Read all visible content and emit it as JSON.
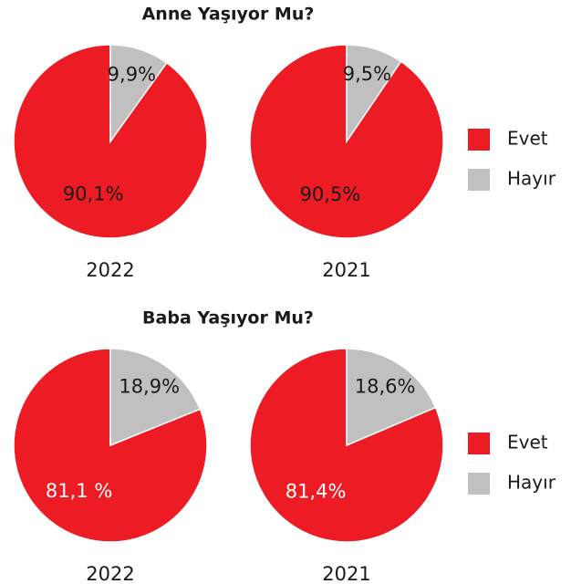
{
  "chart_data": [
    {
      "type": "pie",
      "title": "Anne Yaşıyor Mu?",
      "xlabel": "2022",
      "categories": [
        "Evet",
        "Hayır"
      ],
      "values": [
        90.1,
        9.9
      ],
      "value_labels": [
        "90,1%",
        "9,9%"
      ],
      "colors": [
        "#ed1c24",
        "#c0c0c0"
      ],
      "value_label_colors": [
        "#1a1a1a",
        "#1a1a1a"
      ],
      "legend": "right"
    },
    {
      "type": "pie",
      "xlabel": "2021",
      "categories": [
        "Evet",
        "Hayır"
      ],
      "values": [
        90.5,
        9.5
      ],
      "value_labels": [
        "90,5%",
        "9,5%"
      ],
      "colors": [
        "#ed1c24",
        "#c0c0c0"
      ],
      "value_label_colors": [
        "#1a1a1a",
        "#1a1a1a"
      ]
    },
    {
      "type": "pie",
      "title": "Baba Yaşıyor Mu?",
      "xlabel": "2022",
      "categories": [
        "Evet",
        "Hayır"
      ],
      "values": [
        81.1,
        18.9
      ],
      "value_labels": [
        "81,1 %",
        "18,9%"
      ],
      "colors": [
        "#ed1c24",
        "#c0c0c0"
      ],
      "value_label_colors": [
        "#ffffff",
        "#1a1a1a"
      ],
      "legend": "right"
    },
    {
      "type": "pie",
      "xlabel": "2021",
      "categories": [
        "Evet",
        "Hayır"
      ],
      "values": [
        81.4,
        18.6
      ],
      "value_labels": [
        "81,4%",
        "18,6%"
      ],
      "colors": [
        "#ed1c24",
        "#c0c0c0"
      ],
      "value_label_colors": [
        "#ffffff",
        "#1a1a1a"
      ]
    }
  ]
}
